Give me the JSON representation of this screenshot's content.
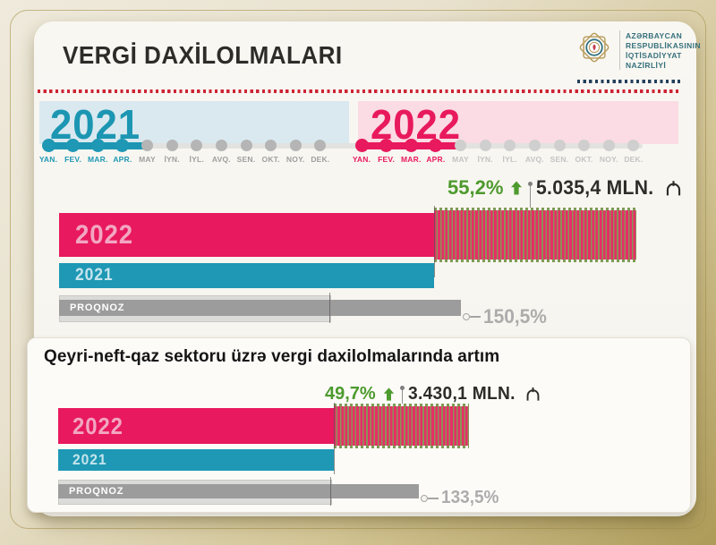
{
  "header": {
    "title": "VERGİ DAXİLOLMALARI",
    "ministry_lines": [
      "AZƏRBAYCAN",
      "RESPUBLİKASININ",
      "İQTİSADİYYAT",
      "NAZİRLİYİ"
    ]
  },
  "timeline": {
    "years": [
      {
        "label": "2021",
        "color": "#1E98B4",
        "band_color": "#D9E9EF"
      },
      {
        "label": "2022",
        "color": "#E8195E",
        "band_color": "#FBDBE4"
      }
    ],
    "months": [
      "YAN.",
      "FEV.",
      "MAR.",
      "APR.",
      "MAY",
      "İYN.",
      "İYL.",
      "AVQ.",
      "SEN.",
      "OKT.",
      "NOY.",
      "DEK."
    ],
    "active_months": 4
  },
  "charts": {
    "total": {
      "growth_label": "55,2%",
      "value_label": "5.035,4 MLN.",
      "bar_2022_label": "2022",
      "bar_2021_label": "2021",
      "forecast_label": "PROQNOZ",
      "forecast_pct_label": "150,5%"
    },
    "non_oil": {
      "section_title": "Qeyri-neft-qaz sektoru üzrə vergi daxilolmalarında artım",
      "growth_label": "49,7%",
      "value_label": "3.430,1 MLN.",
      "bar_2022_label": "2022",
      "bar_2021_label": "2021",
      "forecast_label": "PROQNOZ",
      "forecast_pct_label": "133,5%"
    }
  },
  "chart_data": [
    {
      "type": "bar",
      "orientation": "horizontal",
      "title": "VERGİ DAXİLOLMALARI (yanvar-aprel)",
      "categories": [
        "2022",
        "2021",
        "PROQNOZ"
      ],
      "series": [
        {
          "name": "2022",
          "value_display": "5.035,4 MLN. ₼",
          "value_mln_azn": 5035.4,
          "relative_to_2021_pct": 155.2
        },
        {
          "name": "2021",
          "relative_to_2021_pct": 100
        },
        {
          "name": "PROQNOZ",
          "forecast_baseline_pct": 100,
          "fulfillment_pct": 150.5,
          "fulfillment_display": "150,5%"
        }
      ],
      "annotations": {
        "growth_2022_vs_2021": "55,2% ↑",
        "growth_pct": 55.2
      },
      "colors": {
        "2022": "#E8195E",
        "2021": "#1E98B4",
        "PROQNOZ": "#9C9C9C",
        "growth": "#4D9A2D"
      },
      "legend_position": "on-bar",
      "grid": false
    },
    {
      "type": "bar",
      "orientation": "horizontal",
      "title": "Qeyri-neft-qaz sektoru üzrə vergi daxilolmalarında artım",
      "categories": [
        "2022",
        "2021",
        "PROQNOZ"
      ],
      "series": [
        {
          "name": "2022",
          "value_display": "3.430,1 MLN. ₼",
          "value_mln_azn": 3430.1,
          "relative_to_2021_pct": 149.7
        },
        {
          "name": "2021",
          "relative_to_2021_pct": 100
        },
        {
          "name": "PROQNOZ",
          "forecast_baseline_pct": 100,
          "fulfillment_pct": 133.5,
          "fulfillment_display": "133,5%"
        }
      ],
      "annotations": {
        "growth_2022_vs_2021": "49,7% ↑",
        "growth_pct": 49.7
      },
      "colors": {
        "2022": "#E8195E",
        "2021": "#1E98B4",
        "PROQNOZ": "#9C9C9C",
        "growth": "#4D9A2D"
      },
      "legend_position": "on-bar",
      "grid": false
    }
  ],
  "colors": {
    "crimson": "#E8195E",
    "teal": "#1E98B4",
    "green": "#4D9A2D",
    "gold_frame": "#AD9B59",
    "forecast_gray": "#9C9C9C",
    "red_dots": "#CD2433",
    "navy_dots": "#24405C",
    "card_bg": "#F6F4EE"
  }
}
